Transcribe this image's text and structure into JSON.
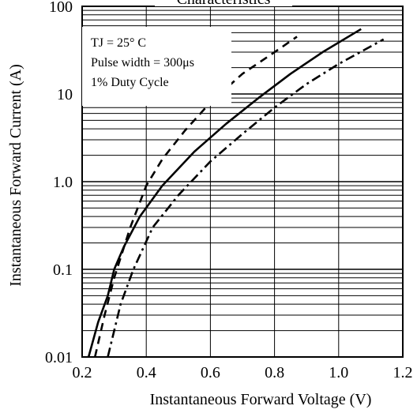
{
  "chart_data": {
    "type": "line",
    "title": "Characteristics",
    "xlabel": "Instantaneous Forward Voltage (V)",
    "ylabel": "Instantaneous Forward Current (A)",
    "xlim": [
      0.2,
      1.2
    ],
    "ylim": [
      0.01,
      100
    ],
    "y_scale": "log",
    "grid": true,
    "x_ticks": [
      "0.2",
      "0.4",
      "0.6",
      "0.8",
      "1.0",
      "1.2"
    ],
    "y_ticks": [
      "0.01",
      "0.1",
      "1.0",
      "10",
      "100"
    ],
    "annotations": [
      "TJ = 25° C",
      "Pulse width = 300μs",
      "1% Duty Cycle"
    ],
    "series": [
      {
        "style": "dashed",
        "x": [
          0.24,
          0.27,
          0.3,
          0.35,
          0.4,
          0.45,
          0.52,
          0.6,
          0.7,
          0.8,
          0.87
        ],
        "y": [
          0.01,
          0.03,
          0.08,
          0.3,
          0.9,
          1.8,
          3.8,
          8.0,
          17.0,
          30.0,
          45.0
        ]
      },
      {
        "style": "solid",
        "x": [
          0.22,
          0.25,
          0.28,
          0.3,
          0.33,
          0.38,
          0.45,
          0.55,
          0.65,
          0.75,
          0.85,
          0.95,
          1.07
        ],
        "y": [
          0.01,
          0.025,
          0.05,
          0.1,
          0.18,
          0.4,
          0.9,
          2.2,
          4.6,
          9.0,
          17.0,
          30.0,
          55.0
        ]
      },
      {
        "style": "dash-dot",
        "x": [
          0.28,
          0.32,
          0.36,
          0.42,
          0.5,
          0.6,
          0.7,
          0.8,
          0.9,
          1.0,
          1.14
        ],
        "y": [
          0.01,
          0.04,
          0.1,
          0.3,
          0.7,
          1.7,
          3.5,
          7.0,
          13.0,
          22.0,
          42.0
        ]
      }
    ]
  }
}
